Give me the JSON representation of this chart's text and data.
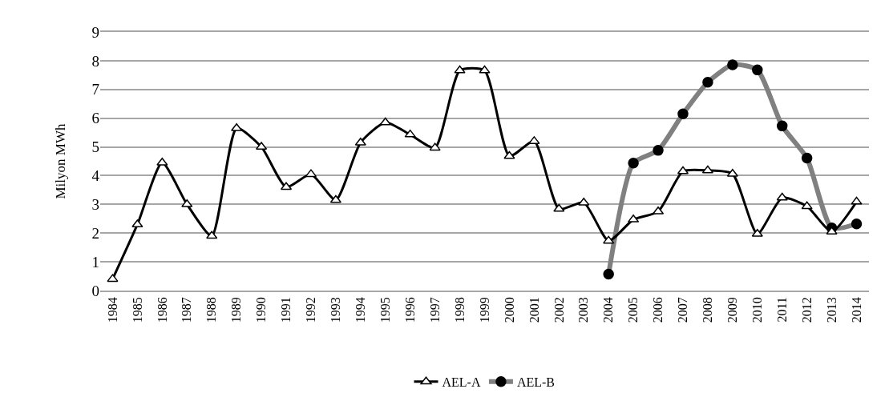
{
  "chart_data": {
    "type": "line",
    "ylabel": "Milyon MWh",
    "categories": [
      "1984",
      "1985",
      "1986",
      "1987",
      "1988",
      "1989",
      "1990",
      "1991",
      "1992",
      "1993",
      "1994",
      "1995",
      "1996",
      "1997",
      "1998",
      "1999",
      "2000",
      "2001",
      "2002",
      "2003",
      "2004",
      "2005",
      "2006",
      "2007",
      "2008",
      "2009",
      "2010",
      "2011",
      "2012",
      "2013",
      "2014"
    ],
    "series": [
      {
        "name": "AEL-A",
        "color": "#000000",
        "marker": "triangle",
        "values": [
          0.4,
          2.3,
          4.45,
          3.0,
          1.9,
          5.65,
          5.0,
          3.6,
          4.05,
          3.15,
          5.15,
          5.85,
          5.43,
          4.97,
          7.66,
          7.66,
          4.68,
          5.2,
          2.84,
          3.06,
          1.73,
          2.47,
          2.75,
          4.15,
          4.18,
          4.06,
          1.97,
          3.23,
          2.93,
          2.05,
          3.09
        ]
      },
      {
        "name": "AEL-B",
        "color": "#808080",
        "marker": "circle",
        "values": [
          null,
          null,
          null,
          null,
          null,
          null,
          null,
          null,
          null,
          null,
          null,
          null,
          null,
          null,
          null,
          null,
          null,
          null,
          null,
          null,
          0.57,
          4.44,
          4.88,
          6.15,
          7.25,
          7.86,
          7.68,
          5.73,
          4.61,
          2.18,
          2.32
        ]
      }
    ],
    "ylim": [
      0,
      9
    ],
    "yticks": [
      0,
      1,
      2,
      3,
      4,
      5,
      6,
      7,
      8,
      9
    ],
    "grid": "y",
    "legend": "bottom",
    "line_style": "solid"
  }
}
